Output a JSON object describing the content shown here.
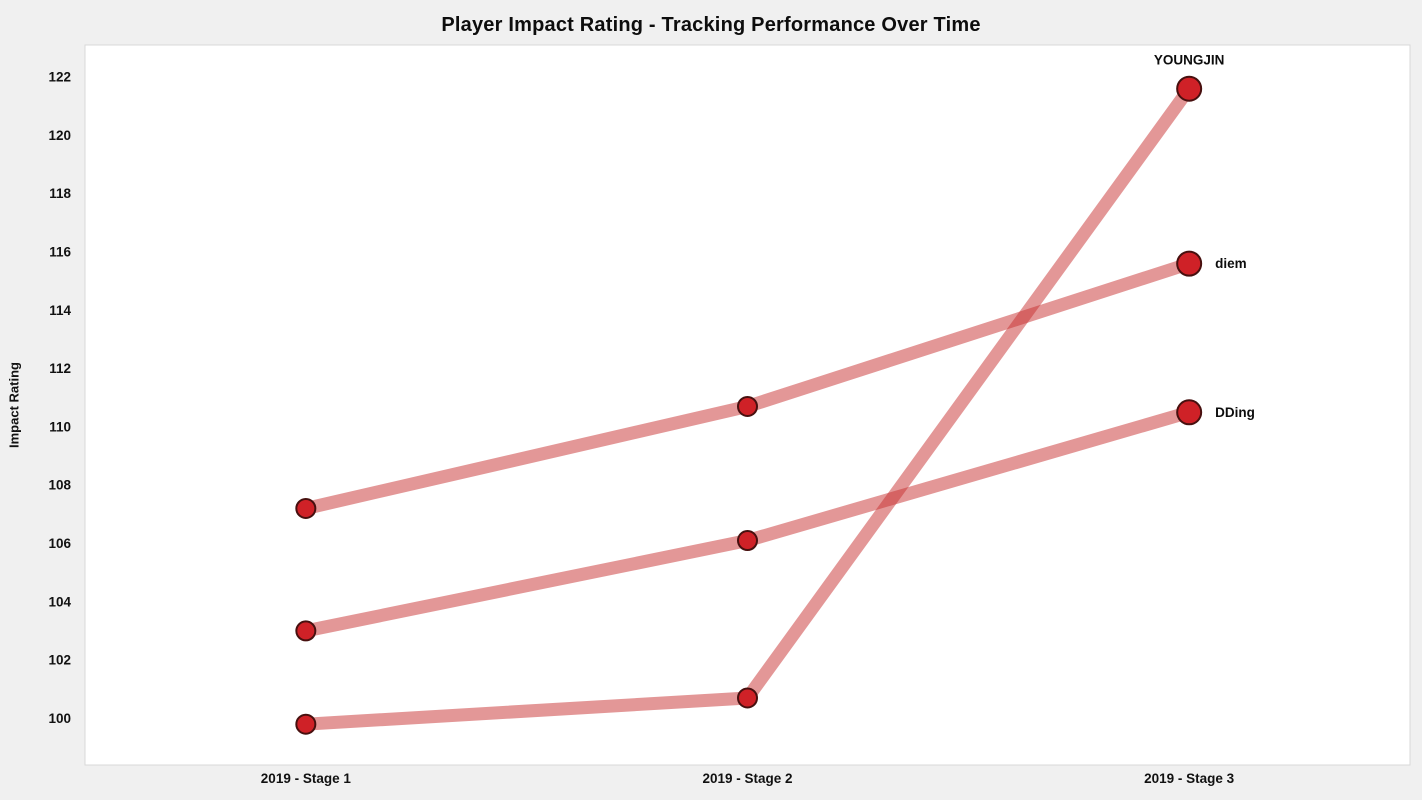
{
  "page": {
    "background": "#f0f0f0",
    "plot_background": "#ffffff",
    "plot_border": "#d9d9d9"
  },
  "chart_data": {
    "type": "line",
    "title": "Player Impact Rating - Tracking Performance Over Time",
    "xlabel": "",
    "ylabel": "Impact Rating",
    "categories": [
      "2019 - Stage 1",
      "2019 - Stage 2",
      "2019 - Stage 3"
    ],
    "yticks": [
      100,
      102,
      104,
      106,
      108,
      110,
      112,
      114,
      116,
      118,
      120,
      122
    ],
    "ylim": [
      98.4,
      123.1
    ],
    "grid": false,
    "legend_position": "end-of-line-labels",
    "series": [
      {
        "name": "YOUNGJIN",
        "values": [
          99.8,
          100.7,
          121.6
        ],
        "label_position": "above"
      },
      {
        "name": "diem",
        "values": [
          107.2,
          110.7,
          115.6
        ],
        "label_position": "right"
      },
      {
        "name": "DDing",
        "values": [
          103.0,
          106.1,
          110.5
        ],
        "label_position": "right"
      }
    ],
    "line_color": "rgba(200,48,48,0.5)",
    "marker_fill": "#cf2127",
    "marker_stroke": "#47100f",
    "tick_color": "#111111"
  }
}
